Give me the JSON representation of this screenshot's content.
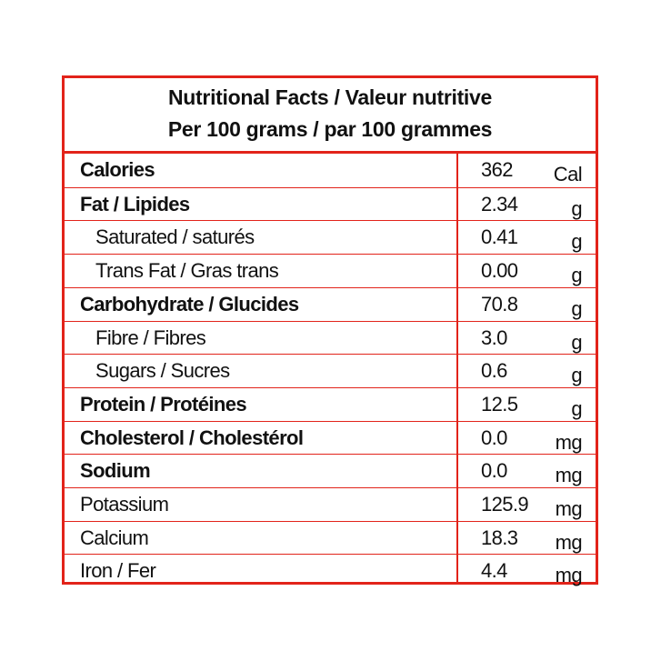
{
  "header": {
    "title": "Nutritional Facts / Valeur nutritive",
    "subtitle": "Per 100 grams / par 100 grammes"
  },
  "table": {
    "rows": [
      {
        "label": "Calories",
        "value": "362",
        "unit": "Cal"
      },
      {
        "label": "Fat / Lipides",
        "value": "2.34",
        "unit": "g"
      },
      {
        "label": "Saturated / saturés",
        "value": "0.41",
        "unit": "g"
      },
      {
        "label": "Trans Fat / Gras trans",
        "value": "0.00",
        "unit": "g"
      },
      {
        "label": "Carbohydrate / Glucides",
        "value": "70.8",
        "unit": "g"
      },
      {
        "label": "Fibre / Fibres",
        "value": "3.0",
        "unit": "g"
      },
      {
        "label": "Sugars / Sucres",
        "value": "0.6",
        "unit": "g"
      },
      {
        "label": "Protein / Protéines",
        "value": "12.5",
        "unit": "g"
      },
      {
        "label": "Cholesterol / Cholestérol",
        "value": "0.0",
        "unit": "mg"
      },
      {
        "label": "Sodium",
        "value": "0.0",
        "unit": "mg"
      },
      {
        "label": "Potassium",
        "value": "125.9",
        "unit": "mg"
      },
      {
        "label": "Calcium",
        "value": "18.3",
        "unit": "mg"
      },
      {
        "label": "Iron / Fer",
        "value": "4.4",
        "unit": "mg"
      }
    ]
  }
}
